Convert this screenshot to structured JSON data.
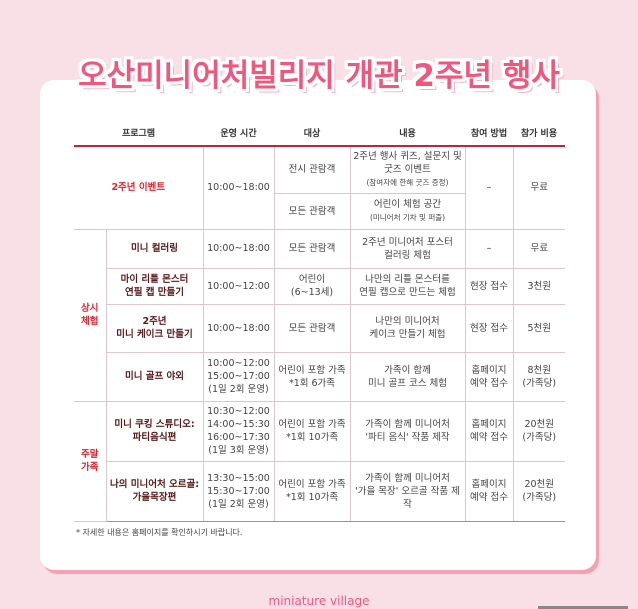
{
  "title": "오산미니어처빌리지 개관 2주년 행사",
  "headers": [
    "프로그램",
    "운영 시간",
    "대상",
    "내용",
    "참여 방법",
    "참가 비용"
  ],
  "event": {
    "program": "2주년 이벤트",
    "time": "10:00~18:00",
    "rows": [
      {
        "target": "전시 관람객",
        "content": "2주년 행사 퀴즈, 설문지 및\n굿즈 이벤트",
        "sub": "(참여자에 한해 굿즈 증정)"
      },
      {
        "target": "모든 관람객",
        "content": "어린이 체험 공간",
        "sub": "(미니어처 기차 및 퍼즐)"
      }
    ],
    "method": "–",
    "cost": "무료"
  },
  "groups": [
    {
      "label": "상시\n체험",
      "rows": [
        {
          "program": "미니 컬러링",
          "time": "10:00~18:00",
          "target": "모든 관람객",
          "content": "2주년 미니어처 포스터\n컬러링 체험",
          "method": "–",
          "cost": "무료"
        },
        {
          "program": "마이 리틀 몬스터\n연필 캡 만들기",
          "time": "10:00~12:00",
          "target": "어린이\n(6~13세)",
          "content": "나만의 리틀 몬스터를\n연필 캡으로 만드는 체험",
          "method": "현장 접수",
          "cost": "3천원"
        },
        {
          "program": "2주년\n미니 케이크 만들기",
          "time": "10:00~18:00",
          "target": "모든 관람객",
          "content": "나만의 미니어처\n케이크 만들기 체험",
          "method": "현장 접수",
          "cost": "5천원"
        },
        {
          "program": "미니 골프 야외",
          "time": "10:00~12:00\n15:00~17:00\n(1일 2회 운영)",
          "target": "어린이 포함 가족\n*1회 6가족",
          "content": "가족이 함께\n미니 골프 코스 체험",
          "method": "홈페이지\n예약 접수",
          "cost": "8천원\n(가족당)"
        }
      ]
    },
    {
      "label": "주말\n가족",
      "rows": [
        {
          "program": "미니 쿠킹 스튜디오:\n파티음식편",
          "time": "10:30~12:00\n14:00~15:30\n16:00~17:30\n(1일 3회 운영)",
          "target": "어린이 포함 가족\n*1회 10가족",
          "content": "가족이 함께 미니어처\n'파티 음식' 작품 제작",
          "method": "홈페이지\n예약 접수",
          "cost": "20천원\n(가족당)"
        },
        {
          "program": "나의 미니어처 오르골:\n가을목장편",
          "time": "13:30~15:00\n15:30~17:00\n(1일 2회 운영)",
          "target": "어린이 포함 가족\n*1회 10가족",
          "content": "가족이 함께 미니어처\n'가을 목장' 오르골 작품 제작",
          "method": "홈페이지\n예약 접수",
          "cost": "20천원\n(가족당)"
        }
      ]
    }
  ],
  "note": "* 자세한 내용은 홈페이지를 확인하시기 바랍니다.",
  "footer": "miniature village",
  "colors": {
    "accent": "#f0577c",
    "red": "#e0242f",
    "background": "#f9e0e6"
  }
}
